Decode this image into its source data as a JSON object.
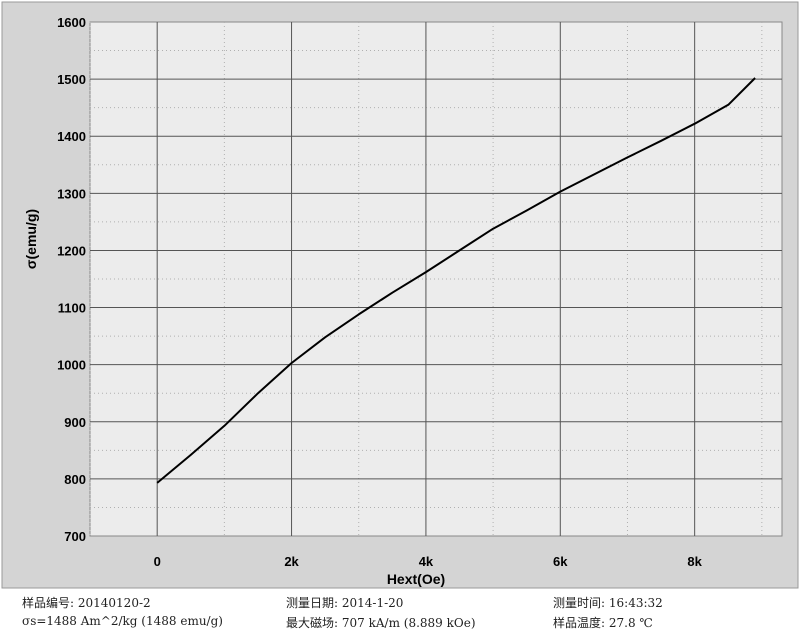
{
  "chart_data": {
    "type": "line",
    "title": "",
    "xlabel": "Hext(Oe)",
    "ylabel": "σ(emu/g)",
    "xlim": [
      -1000,
      9300
    ],
    "ylim": [
      700,
      1600
    ],
    "x_ticks": [
      0,
      2000,
      4000,
      6000,
      8000
    ],
    "x_tick_labels": [
      "0",
      "2k",
      "4k",
      "6k",
      "8k"
    ],
    "y_ticks": [
      700,
      800,
      900,
      1000,
      1100,
      1200,
      1300,
      1400,
      1500,
      1600
    ],
    "y_tick_labels": [
      "700",
      "800",
      "900",
      "1000",
      "1100",
      "1200",
      "1300",
      "1400",
      "1500",
      "1600"
    ],
    "grid": true,
    "series": [
      {
        "x": [
          0,
          500,
          1000,
          1500,
          2000,
          2500,
          3000,
          3500,
          4000,
          4500,
          5000,
          5500,
          6000,
          6500,
          7000,
          7500,
          8000,
          8500,
          8900
        ],
        "y": [
          793,
          842,
          893,
          950,
          1003,
          1048,
          1088,
          1126,
          1162,
          1200,
          1238,
          1270,
          1303,
          1333,
          1363,
          1392,
          1422,
          1455,
          1502
        ]
      }
    ],
    "colors": {
      "background": "#ffffff",
      "axes_bg": "#ececec",
      "frame": "#888888",
      "grid": "#555555",
      "line": "#000000"
    }
  },
  "info": {
    "row1": [
      {
        "label": "样品编号:",
        "value": "20140120-2"
      },
      {
        "label": "测量日期:",
        "value": "2014-1-20"
      },
      {
        "label": "测量时间:",
        "value": "16:43:32"
      }
    ],
    "row2": [
      {
        "label": "σs=",
        "value": "1488 Am^2/kg (1488 emu/g)"
      },
      {
        "label": "最大磁场:",
        "value": "707 kA/m (8.889 kOe)"
      },
      {
        "label": "样品温度:",
        "value": "27.8 ℃"
      }
    ]
  }
}
